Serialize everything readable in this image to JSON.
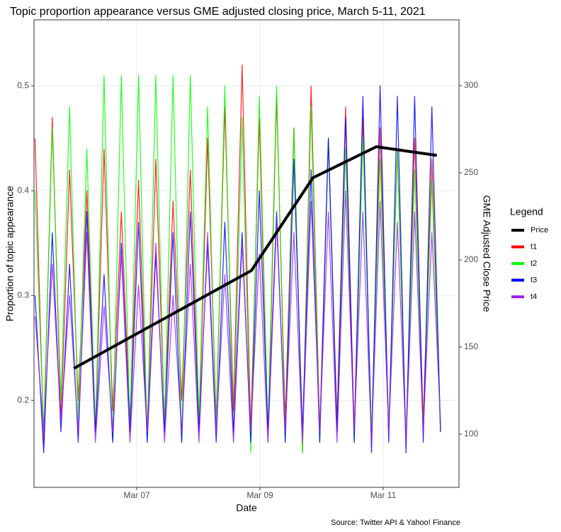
{
  "chart_data": {
    "type": "line",
    "title": "Topic proportion appearance versus GME adjusted closing price, March 5-11, 2021",
    "x_label": "Date",
    "y_label": "Proportion of topic appearance",
    "y2_label": "GME Adjusted Close Price",
    "legend_title": "Legend",
    "caption": "Source: Twitter API & Yahoo! Finance",
    "legend_position": "right",
    "grid": true,
    "xlim": [
      5.333,
      12.23
    ],
    "xticks": [
      {
        "value": 7,
        "label": "Mar 07"
      },
      {
        "value": 9,
        "label": "Mar 09"
      },
      {
        "value": 11,
        "label": "Mar 11"
      }
    ],
    "ylim": [
      0.117,
      0.563
    ],
    "yticks": [
      0.2,
      0.3,
      0.4,
      0.5
    ],
    "y2lim": [
      69.5,
      337.8
    ],
    "y2ticks": [
      100,
      150,
      200,
      250,
      300
    ],
    "x": [
      5.35,
      5.49,
      5.63,
      5.77,
      5.91,
      6.05,
      6.19,
      6.33,
      6.47,
      6.61,
      6.75,
      6.89,
      7.03,
      7.17,
      7.31,
      7.45,
      7.59,
      7.73,
      7.87,
      8.01,
      8.15,
      8.29,
      8.43,
      8.57,
      8.71,
      8.85,
      8.99,
      9.13,
      9.27,
      9.41,
      9.55,
      9.69,
      9.83,
      9.97,
      10.11,
      10.25,
      10.39,
      10.53,
      10.67,
      10.81,
      10.95,
      11.09,
      11.23,
      11.37,
      11.51,
      11.65,
      11.79,
      11.93
    ],
    "series": [
      {
        "name": "Price",
        "color": "#000000",
        "axis": "y2",
        "x": [
          5.98,
          8.86,
          9.86,
          10.89,
          11.87
        ],
        "values": [
          137.8,
          193.9,
          247.2,
          265.0,
          260.0
        ]
      },
      {
        "name": "t1",
        "color": "#ff0000",
        "values": [
          0.45,
          0.16,
          0.47,
          0.18,
          0.42,
          0.2,
          0.4,
          0.17,
          0.44,
          0.19,
          0.38,
          0.18,
          0.41,
          0.17,
          0.43,
          0.18,
          0.39,
          0.2,
          0.42,
          0.17,
          0.45,
          0.18,
          0.48,
          0.19,
          0.52,
          0.17,
          0.47,
          0.16,
          0.49,
          0.18,
          0.46,
          0.15,
          0.5,
          0.17,
          0.45,
          0.18,
          0.48,
          0.17,
          0.47,
          0.16,
          0.46,
          0.17,
          0.44,
          0.16,
          0.45,
          0.18,
          0.43,
          0.17
        ]
      },
      {
        "name": "t2",
        "color": "#00ff00",
        "values": [
          0.4,
          0.17,
          0.46,
          0.2,
          0.48,
          0.18,
          0.44,
          0.17,
          0.51,
          0.16,
          0.51,
          0.17,
          0.51,
          0.16,
          0.51,
          0.17,
          0.51,
          0.16,
          0.51,
          0.18,
          0.48,
          0.17,
          0.5,
          0.16,
          0.47,
          0.15,
          0.49,
          0.17,
          0.5,
          0.16,
          0.46,
          0.15,
          0.48,
          0.16,
          0.45,
          0.17,
          0.44,
          0.16,
          0.45,
          0.17,
          0.43,
          0.17,
          0.44,
          0.16,
          0.42,
          0.17,
          0.41,
          0.17
        ]
      },
      {
        "name": "t3",
        "color": "#0000ff",
        "values": [
          0.3,
          0.15,
          0.36,
          0.17,
          0.33,
          0.16,
          0.38,
          0.17,
          0.32,
          0.16,
          0.35,
          0.17,
          0.37,
          0.16,
          0.34,
          0.17,
          0.36,
          0.16,
          0.38,
          0.17,
          0.35,
          0.16,
          0.37,
          0.17,
          0.36,
          0.16,
          0.4,
          0.17,
          0.38,
          0.16,
          0.43,
          0.17,
          0.42,
          0.16,
          0.45,
          0.17,
          0.47,
          0.16,
          0.49,
          0.15,
          0.5,
          0.16,
          0.49,
          0.15,
          0.49,
          0.16,
          0.48,
          0.17
        ]
      },
      {
        "name": "t4",
        "color": "#a020f0",
        "values": [
          0.28,
          0.17,
          0.33,
          0.18,
          0.3,
          0.17,
          0.36,
          0.16,
          0.29,
          0.17,
          0.34,
          0.16,
          0.31,
          0.17,
          0.35,
          0.16,
          0.3,
          0.17,
          0.33,
          0.16,
          0.36,
          0.17,
          0.32,
          0.16,
          0.35,
          0.17,
          0.34,
          0.16,
          0.37,
          0.17,
          0.36,
          0.16,
          0.39,
          0.17,
          0.38,
          0.16,
          0.4,
          0.17,
          0.38,
          0.16,
          0.39,
          0.17,
          0.37,
          0.16,
          0.38,
          0.17,
          0.36,
          0.18
        ]
      }
    ]
  }
}
